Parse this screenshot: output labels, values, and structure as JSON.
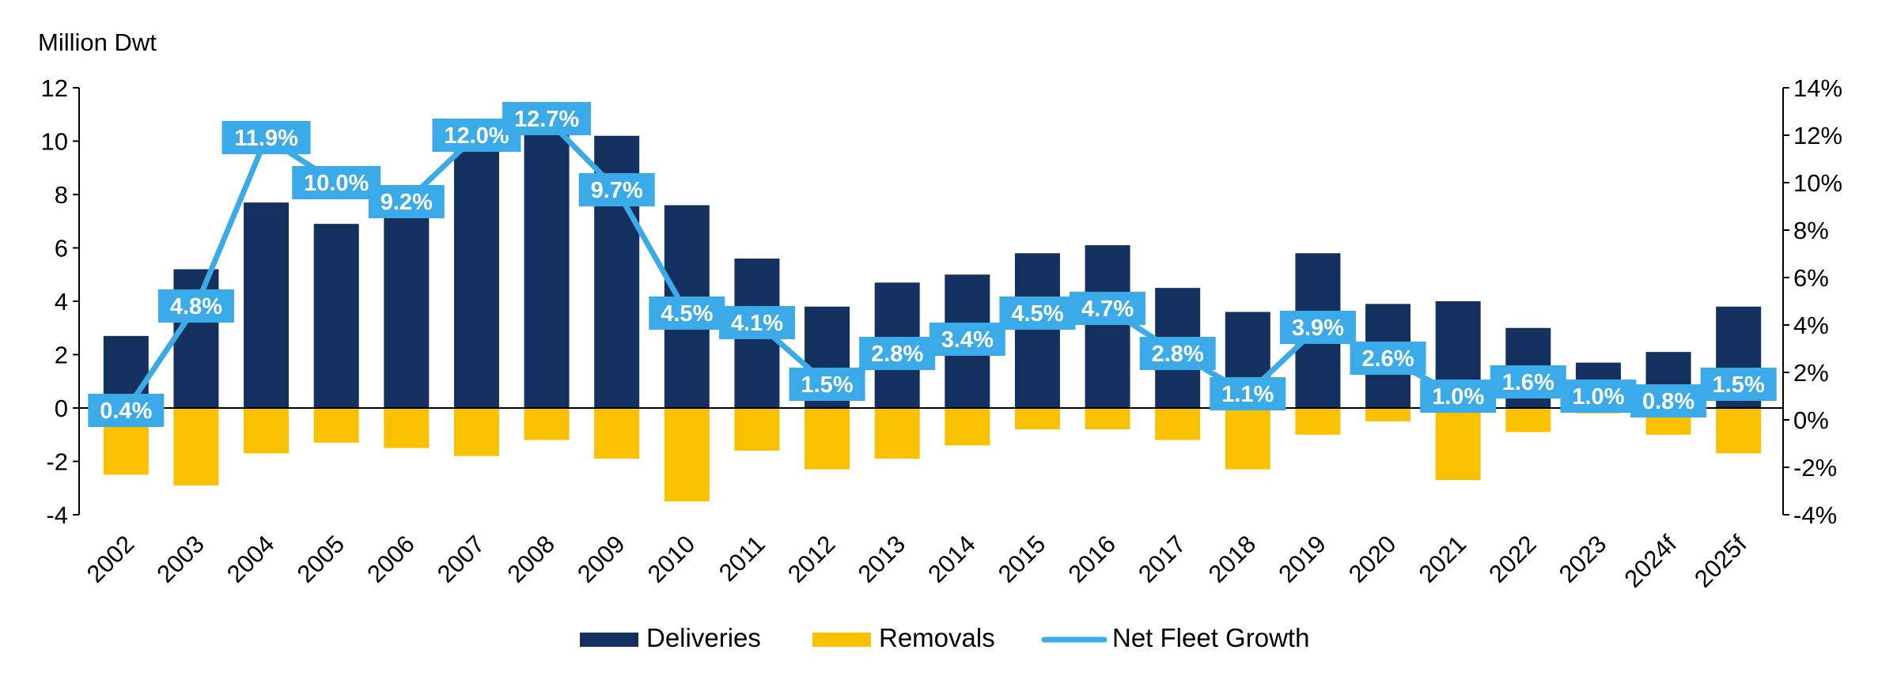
{
  "chart_data": {
    "type": "bar",
    "y_unit_label": "Million Dwt",
    "categories": [
      "2002",
      "2003",
      "2004",
      "2005",
      "2006",
      "2007",
      "2008",
      "2009",
      "2010",
      "2011",
      "2012",
      "2013",
      "2014",
      "2015",
      "2016",
      "2017",
      "2018",
      "2019",
      "2020",
      "2021",
      "2022",
      "2023",
      "2024f",
      "2025f"
    ],
    "series": [
      {
        "name": "Deliveries",
        "kind": "bar",
        "axis": "left",
        "color": "#13305f",
        "values": [
          2.7,
          5.2,
          7.7,
          6.9,
          7.3,
          9.8,
          10.6,
          10.2,
          7.6,
          5.6,
          3.8,
          4.7,
          5.0,
          5.8,
          6.1,
          4.5,
          3.6,
          5.8,
          3.9,
          4.0,
          3.0,
          1.7,
          2.1,
          3.8
        ]
      },
      {
        "name": "Removals",
        "kind": "bar",
        "axis": "left",
        "color": "#f9c100",
        "values": [
          -2.5,
          -2.9,
          -1.7,
          -1.3,
          -1.5,
          -1.8,
          -1.2,
          -1.9,
          -3.5,
          -1.6,
          -2.3,
          -1.9,
          -1.4,
          -0.8,
          -0.8,
          -1.2,
          -2.3,
          -1.0,
          -0.5,
          -2.7,
          -0.9,
          -0.2,
          -1.0,
          -1.7
        ]
      },
      {
        "name": "Net Fleet Growth",
        "kind": "line",
        "axis": "right",
        "color": "#3aabe8",
        "values": [
          0.4,
          4.8,
          11.9,
          10.0,
          9.2,
          12.0,
          12.7,
          9.7,
          4.5,
          4.1,
          1.5,
          2.8,
          3.4,
          4.5,
          4.7,
          2.8,
          1.1,
          3.9,
          2.6,
          1.0,
          1.6,
          1.0,
          0.8,
          1.5
        ],
        "labels": [
          "0.4%",
          "4.8%",
          "11.9%",
          "10.0%",
          "9.2%",
          "12.0%",
          "12.7%",
          "9.7%",
          "4.5%",
          "4.1%",
          "1.5%",
          "2.8%",
          "3.4%",
          "4.5%",
          "4.7%",
          "2.8%",
          "1.1%",
          "3.9%",
          "2.6%",
          "1.0%",
          "1.6%",
          "1.0%",
          "0.8%",
          "1.5%"
        ]
      }
    ],
    "y_left": {
      "min": -4,
      "max": 12,
      "ticks": [
        "-4",
        "-2",
        "0",
        "2",
        "4",
        "6",
        "8",
        "10",
        "12"
      ]
    },
    "y_right": {
      "min": -4,
      "max": 14,
      "ticks": [
        "-4%",
        "-2%",
        "0%",
        "2%",
        "4%",
        "6%",
        "8%",
        "10%",
        "12%",
        "14%"
      ]
    },
    "grid": false,
    "legend_position": "bottom-center"
  }
}
